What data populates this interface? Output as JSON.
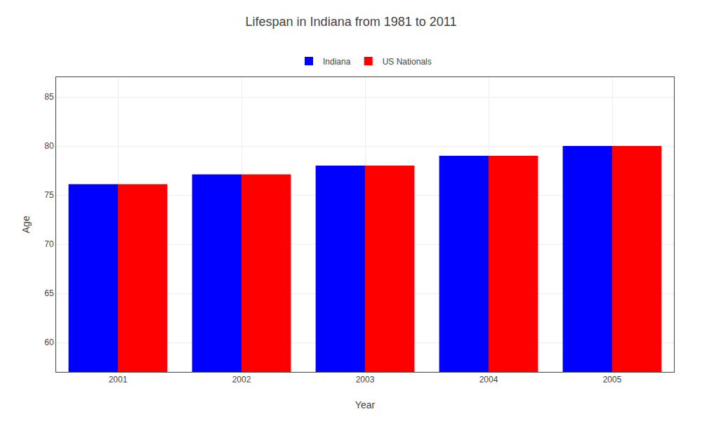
{
  "chart_data": {
    "type": "bar",
    "title": "Lifespan in Indiana from 1981 to 2011",
    "xlabel": "Year",
    "ylabel": "Age",
    "categories": [
      "2001",
      "2002",
      "2003",
      "2004",
      "2005"
    ],
    "series": [
      {
        "name": "Indiana",
        "color": "#0000ff",
        "values": [
          76.1,
          77.1,
          78.0,
          79.0,
          80.0
        ]
      },
      {
        "name": "US Nationals",
        "color": "#ff0000",
        "values": [
          76.1,
          77.1,
          78.0,
          79.0,
          80.0
        ]
      }
    ],
    "ylim": [
      57,
      87
    ],
    "yticks": [
      60,
      65,
      70,
      75,
      80,
      85
    ],
    "grid": true,
    "legend": "top"
  }
}
